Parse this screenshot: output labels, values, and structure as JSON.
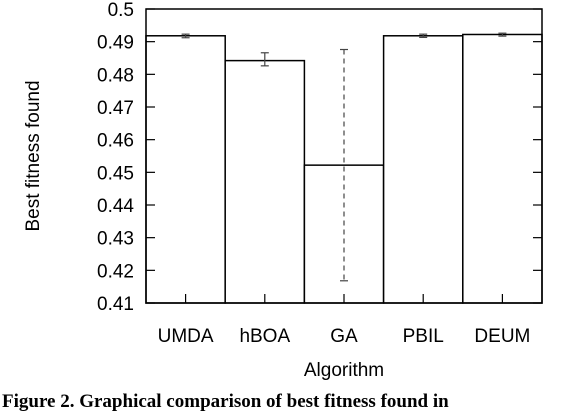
{
  "caption": "Figure 2. Graphical comparison of best fitness found in",
  "chart_data": {
    "type": "bar",
    "categories": [
      "UMDA",
      "hBOA",
      "GA",
      "PBIL",
      "DEUM"
    ],
    "values": [
      0.4918,
      0.4842,
      0.4522,
      0.4918,
      0.4922
    ],
    "error_low": [
      0.4912,
      0.4826,
      0.4168,
      0.4913,
      0.4917
    ],
    "error_high": [
      0.4923,
      0.4866,
      0.4876,
      0.4923,
      0.4926
    ],
    "error_style": [
      "solid",
      "solid",
      "dashed",
      "solid",
      "solid"
    ],
    "xlabel": "Algorithm",
    "ylabel": "Best fitness found",
    "ylim": [
      0.41,
      0.5
    ],
    "yticks": [
      "0.41",
      "0.42",
      "0.43",
      "0.44",
      "0.45",
      "0.46",
      "0.47",
      "0.48",
      "0.49",
      "0.5"
    ],
    "grid": false,
    "legend": "none",
    "bar_fill": "#ffffff",
    "stroke_color": "#000000",
    "errorbar_color": "#444444"
  }
}
